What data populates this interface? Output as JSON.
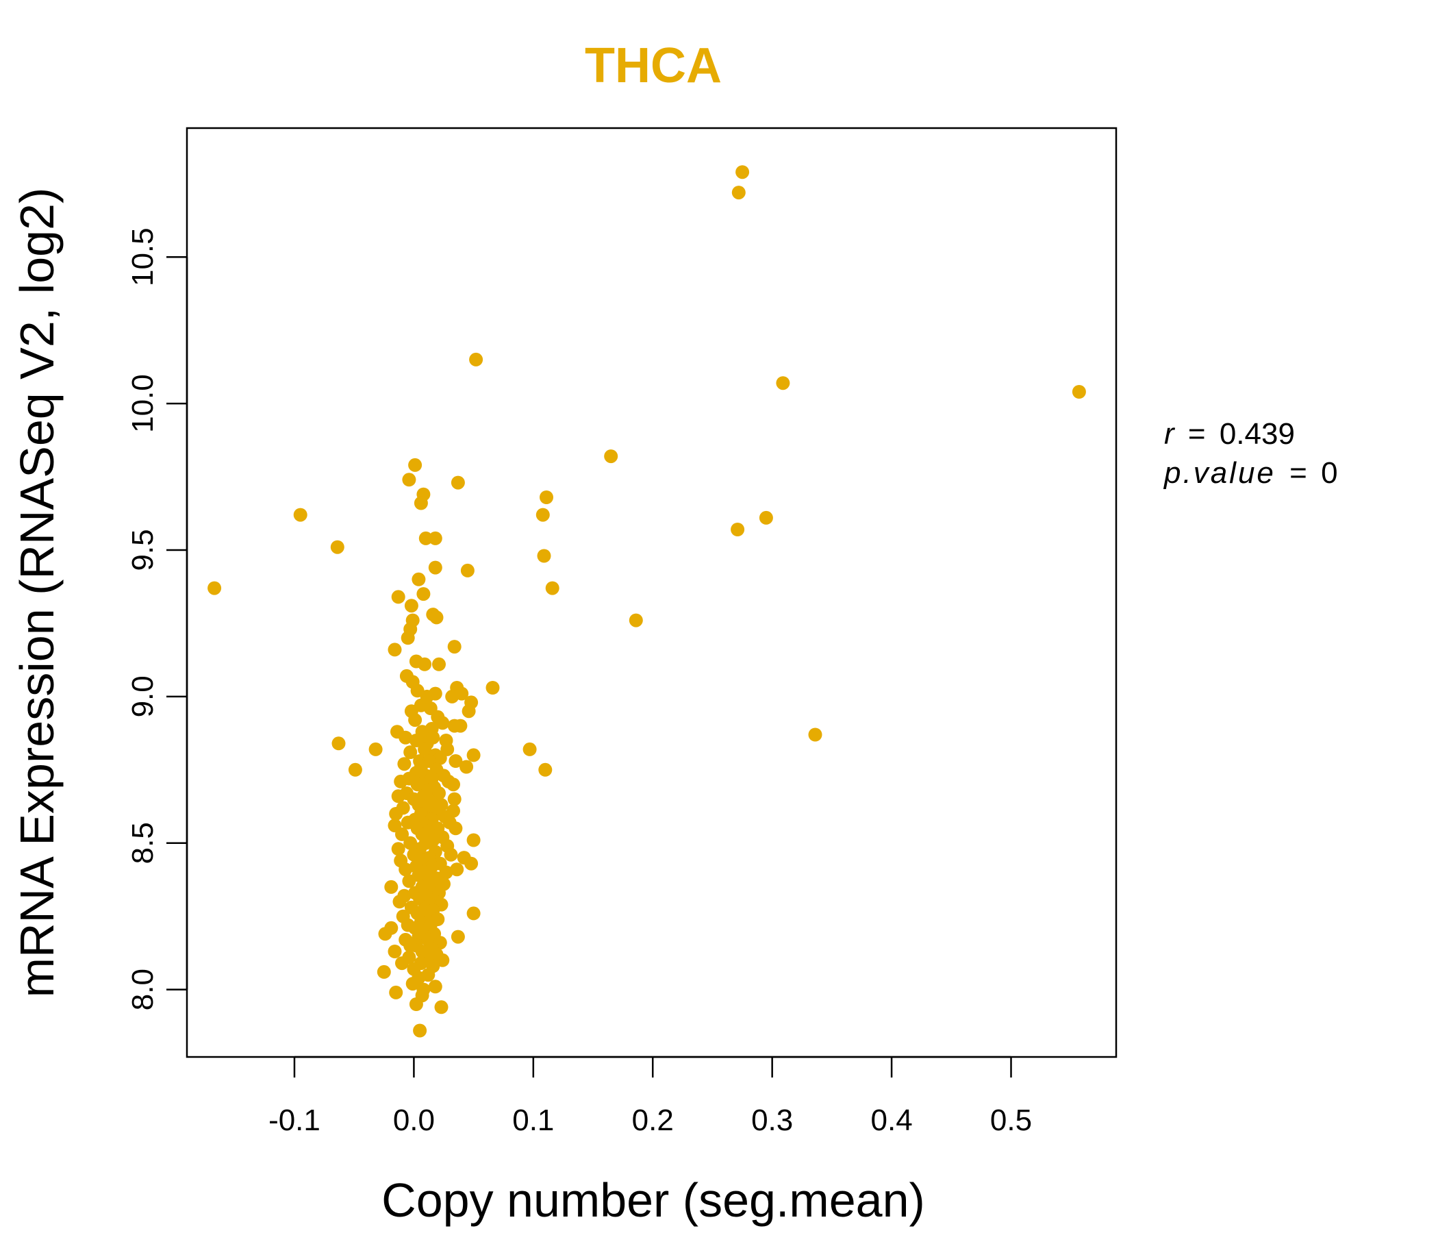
{
  "chart_data": {
    "type": "scatter",
    "title": "THCA",
    "xlabel": "Copy number (seg.mean)",
    "ylabel": "mRNA Expression (RNASeq V2, log2)",
    "xlim": [
      -0.19,
      0.588
    ],
    "ylim": [
      7.77,
      10.94
    ],
    "xticks": [
      -0.1,
      0.0,
      0.1,
      0.2,
      0.3,
      0.4,
      0.5
    ],
    "xtick_labels": [
      "-0.1",
      "0.0",
      "0.1",
      "0.2",
      "0.3",
      "0.4",
      "0.5"
    ],
    "yticks": [
      8.0,
      8.5,
      9.0,
      9.5,
      10.0,
      10.5
    ],
    "ytick_labels": [
      "8.0",
      "8.5",
      "9.0",
      "9.5",
      "10.0",
      "10.5"
    ],
    "point_color": "#E6AB02",
    "stats": {
      "r_label": "r",
      "r_value": "0.439",
      "p_label": "p.value",
      "p_value": "0"
    },
    "points": [
      [
        0.275,
        10.79
      ],
      [
        0.272,
        10.72
      ],
      [
        0.052,
        10.15
      ],
      [
        0.309,
        10.07
      ],
      [
        0.557,
        10.04
      ],
      [
        0.165,
        9.82
      ],
      [
        0.001,
        9.79
      ],
      [
        -0.004,
        9.74
      ],
      [
        0.037,
        9.73
      ],
      [
        0.008,
        9.69
      ],
      [
        0.111,
        9.68
      ],
      [
        0.006,
        9.66
      ],
      [
        -0.095,
        9.62
      ],
      [
        0.108,
        9.62
      ],
      [
        0.295,
        9.61
      ],
      [
        0.271,
        9.57
      ],
      [
        0.01,
        9.54
      ],
      [
        0.018,
        9.54
      ],
      [
        -0.064,
        9.51
      ],
      [
        0.109,
        9.48
      ],
      [
        0.018,
        9.44
      ],
      [
        0.045,
        9.43
      ],
      [
        0.004,
        9.4
      ],
      [
        -0.167,
        9.37
      ],
      [
        0.116,
        9.37
      ],
      [
        -0.013,
        9.34
      ],
      [
        0.008,
        9.35
      ],
      [
        -0.002,
        9.31
      ],
      [
        0.016,
        9.28
      ],
      [
        0.019,
        9.27
      ],
      [
        0.186,
        9.26
      ],
      [
        -0.001,
        9.26
      ],
      [
        -0.003,
        9.23
      ],
      [
        -0.005,
        9.2
      ],
      [
        0.034,
        9.17
      ],
      [
        -0.016,
        9.16
      ],
      [
        0.002,
        9.12
      ],
      [
        0.021,
        9.11
      ],
      [
        0.009,
        9.11
      ],
      [
        -0.006,
        9.07
      ],
      [
        -0.001,
        9.05
      ],
      [
        0.066,
        9.03
      ],
      [
        0.036,
        9.03
      ],
      [
        0.003,
        9.02
      ],
      [
        0.018,
        9.01
      ],
      [
        0.04,
        9.01
      ],
      [
        0.011,
        9.0
      ],
      [
        0.032,
        9.0
      ],
      [
        0.048,
        8.98
      ],
      [
        0.006,
        8.97
      ],
      [
        0.014,
        8.96
      ],
      [
        0.046,
        8.95
      ],
      [
        -0.002,
        8.95
      ],
      [
        0.02,
        8.93
      ],
      [
        0.001,
        8.92
      ],
      [
        0.024,
        8.91
      ],
      [
        0.034,
        8.9
      ],
      [
        0.039,
        8.9
      ],
      [
        0.015,
        8.89
      ],
      [
        0.007,
        8.88
      ],
      [
        0.336,
        8.87
      ],
      [
        -0.014,
        8.88
      ],
      [
        -0.007,
        8.86
      ],
      [
        0.016,
        8.86
      ],
      [
        0.027,
        8.85
      ],
      [
        0.002,
        8.85
      ],
      [
        0.011,
        8.84
      ],
      [
        -0.063,
        8.84
      ],
      [
        -0.032,
        8.82
      ],
      [
        0.097,
        8.82
      ],
      [
        0.009,
        8.82
      ],
      [
        0.028,
        8.82
      ],
      [
        -0.003,
        8.81
      ],
      [
        0.05,
        8.8
      ],
      [
        0.018,
        8.8
      ],
      [
        0.022,
        8.79
      ],
      [
        0.005,
        8.78
      ],
      [
        0.035,
        8.78
      ],
      [
        0.044,
        8.76
      ],
      [
        0.013,
        8.78
      ],
      [
        -0.008,
        8.77
      ],
      [
        0.006,
        8.76
      ],
      [
        0.11,
        8.75
      ],
      [
        -0.049,
        8.75
      ],
      [
        0.019,
        8.75
      ],
      [
        0.002,
        8.74
      ],
      [
        0.025,
        8.73
      ],
      [
        0.01,
        8.73
      ],
      [
        -0.004,
        8.72
      ],
      [
        0.015,
        8.72
      ],
      [
        0.029,
        8.71
      ],
      [
        -0.011,
        8.71
      ],
      [
        0.007,
        8.7
      ],
      [
        0.003,
        8.7
      ],
      [
        0.017,
        8.69
      ],
      [
        0.033,
        8.7
      ],
      [
        0.012,
        8.68
      ],
      [
        -0.006,
        8.67
      ],
      [
        0.021,
        8.67
      ],
      [
        0.008,
        8.66
      ],
      [
        -0.013,
        8.66
      ],
      [
        0.0,
        8.65
      ],
      [
        0.034,
        8.65
      ],
      [
        0.014,
        8.64
      ],
      [
        0.023,
        8.63
      ],
      [
        0.004,
        8.63
      ],
      [
        -0.009,
        8.62
      ],
      [
        0.011,
        8.62
      ],
      [
        0.033,
        8.61
      ],
      [
        0.019,
        8.6
      ],
      [
        -0.015,
        8.6
      ],
      [
        0.006,
        8.6
      ],
      [
        0.026,
        8.59
      ],
      [
        0.001,
        8.58
      ],
      [
        0.015,
        8.58
      ],
      [
        -0.005,
        8.57
      ],
      [
        0.009,
        8.56
      ],
      [
        0.03,
        8.57
      ],
      [
        -0.016,
        8.56
      ],
      [
        0.02,
        8.55
      ],
      [
        0.003,
        8.55
      ],
      [
        0.012,
        8.54
      ],
      [
        0.035,
        8.55
      ],
      [
        -0.01,
        8.53
      ],
      [
        0.007,
        8.53
      ],
      [
        0.024,
        8.52
      ],
      [
        0.016,
        8.51
      ],
      [
        0.05,
        8.51
      ],
      [
        -0.003,
        8.5
      ],
      [
        0.01,
        8.5
      ],
      [
        0.028,
        8.49
      ],
      [
        -0.013,
        8.48
      ],
      [
        0.005,
        8.48
      ],
      [
        0.018,
        8.47
      ],
      [
        0.031,
        8.46
      ],
      [
        0.0,
        8.46
      ],
      [
        0.013,
        8.45
      ],
      [
        0.042,
        8.45
      ],
      [
        -0.011,
        8.44
      ],
      [
        0.008,
        8.44
      ],
      [
        0.022,
        8.43
      ],
      [
        0.048,
        8.43
      ],
      [
        0.002,
        8.42
      ],
      [
        0.015,
        8.42
      ],
      [
        0.036,
        8.41
      ],
      [
        -0.007,
        8.41
      ],
      [
        0.01,
        8.4
      ],
      [
        0.027,
        8.4
      ],
      [
        0.004,
        8.39
      ],
      [
        0.019,
        8.38
      ],
      [
        -0.004,
        8.37
      ],
      [
        0.012,
        8.37
      ],
      [
        0.025,
        8.36
      ],
      [
        -0.019,
        8.35
      ],
      [
        0.007,
        8.35
      ],
      [
        0.016,
        8.34
      ],
      [
        0.001,
        8.33
      ],
      [
        0.021,
        8.33
      ],
      [
        -0.008,
        8.32
      ],
      [
        0.01,
        8.32
      ],
      [
        0.005,
        8.31
      ],
      [
        0.018,
        8.3
      ],
      [
        -0.012,
        8.3
      ],
      [
        0.013,
        8.29
      ],
      [
        0.023,
        8.29
      ],
      [
        -0.002,
        8.28
      ],
      [
        0.008,
        8.27
      ],
      [
        0.016,
        8.27
      ],
      [
        0.003,
        8.26
      ],
      [
        0.05,
        8.26
      ],
      [
        -0.009,
        8.25
      ],
      [
        0.011,
        8.25
      ],
      [
        0.02,
        8.24
      ],
      [
        0.006,
        8.23
      ],
      [
        -0.005,
        8.22
      ],
      [
        0.014,
        8.22
      ],
      [
        -0.019,
        8.21
      ],
      [
        0.001,
        8.21
      ],
      [
        0.009,
        8.2
      ],
      [
        -0.024,
        8.19
      ],
      [
        0.017,
        8.19
      ],
      [
        0.004,
        8.18
      ],
      [
        0.037,
        8.18
      ],
      [
        -0.007,
        8.17
      ],
      [
        0.012,
        8.17
      ],
      [
        0.022,
        8.16
      ],
      [
        0.002,
        8.15
      ],
      [
        -0.003,
        8.15
      ],
      [
        0.015,
        8.14
      ],
      [
        -0.016,
        8.13
      ],
      [
        0.007,
        8.13
      ],
      [
        0.019,
        8.12
      ],
      [
        0.011,
        8.11
      ],
      [
        -0.004,
        8.11
      ],
      [
        0.024,
        8.1
      ],
      [
        0.006,
        8.09
      ],
      [
        -0.01,
        8.09
      ],
      [
        0.016,
        8.08
      ],
      [
        0.0,
        8.07
      ],
      [
        -0.025,
        8.06
      ],
      [
        0.012,
        8.05
      ],
      [
        0.004,
        8.04
      ],
      [
        -0.001,
        8.02
      ],
      [
        0.018,
        8.01
      ],
      [
        0.008,
        8.0
      ],
      [
        -0.015,
        7.99
      ],
      [
        0.007,
        7.98
      ],
      [
        0.002,
        7.95
      ],
      [
        0.023,
        7.94
      ],
      [
        0.005,
        7.86
      ]
    ]
  }
}
